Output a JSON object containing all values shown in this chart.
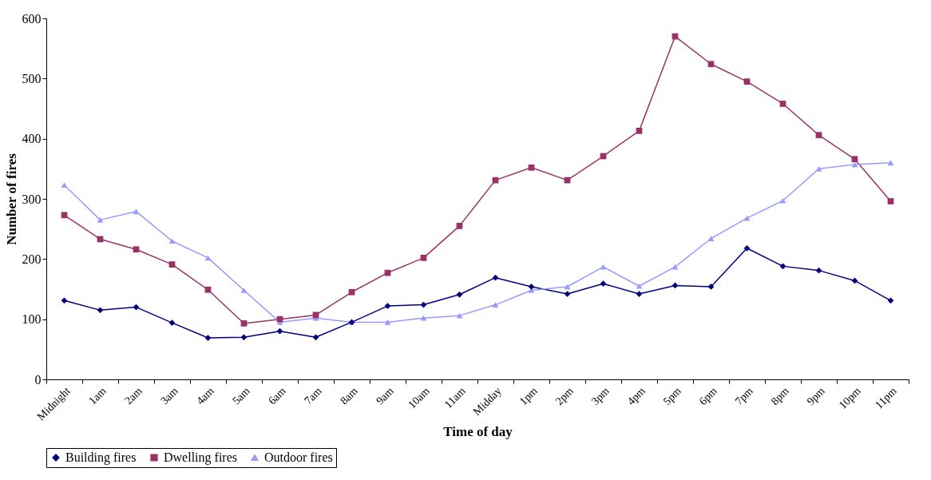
{
  "chart_data": {
    "type": "line",
    "xlabel": "Time of day",
    "ylabel": "Number of fires",
    "categories": [
      "Midnight",
      "1am",
      "2am",
      "3am",
      "4am",
      "5am",
      "6am",
      "7am",
      "8am",
      "9am",
      "10am",
      "11am",
      "Midday",
      "1pm",
      "2pm",
      "3pm",
      "4pm",
      "5pm",
      "6pm",
      "7pm",
      "8pm",
      "9pm",
      "10pm",
      "11pm"
    ],
    "series": [
      {
        "name": "Building fires",
        "color": "#000080",
        "marker": "diamond",
        "values": [
          131,
          115,
          120,
          94,
          69,
          70,
          80,
          70,
          95,
          122,
          124,
          141,
          169,
          154,
          142,
          159,
          142,
          156,
          154,
          218,
          188,
          181,
          164,
          131
        ]
      },
      {
        "name": "Dwelling fires",
        "color": "#993366",
        "marker": "square",
        "values": [
          273,
          233,
          216,
          191,
          149,
          93,
          100,
          107,
          145,
          177,
          202,
          255,
          331,
          352,
          331,
          371,
          413,
          570,
          524,
          495,
          458,
          406,
          366,
          296
        ]
      },
      {
        "name": "Outdoor fires",
        "color": "#9999ff",
        "marker": "triangle",
        "values": [
          323,
          265,
          279,
          230,
          202,
          148,
          95,
          102,
          95,
          95,
          102,
          106,
          124,
          148,
          154,
          187,
          155,
          187,
          234,
          268,
          297,
          350,
          357,
          360
        ]
      }
    ],
    "ylim": [
      0,
      600
    ],
    "yticks": [
      0,
      100,
      200,
      300,
      400,
      500,
      600
    ],
    "grid": false,
    "legend": "bottom",
    "line_style": "solid"
  }
}
